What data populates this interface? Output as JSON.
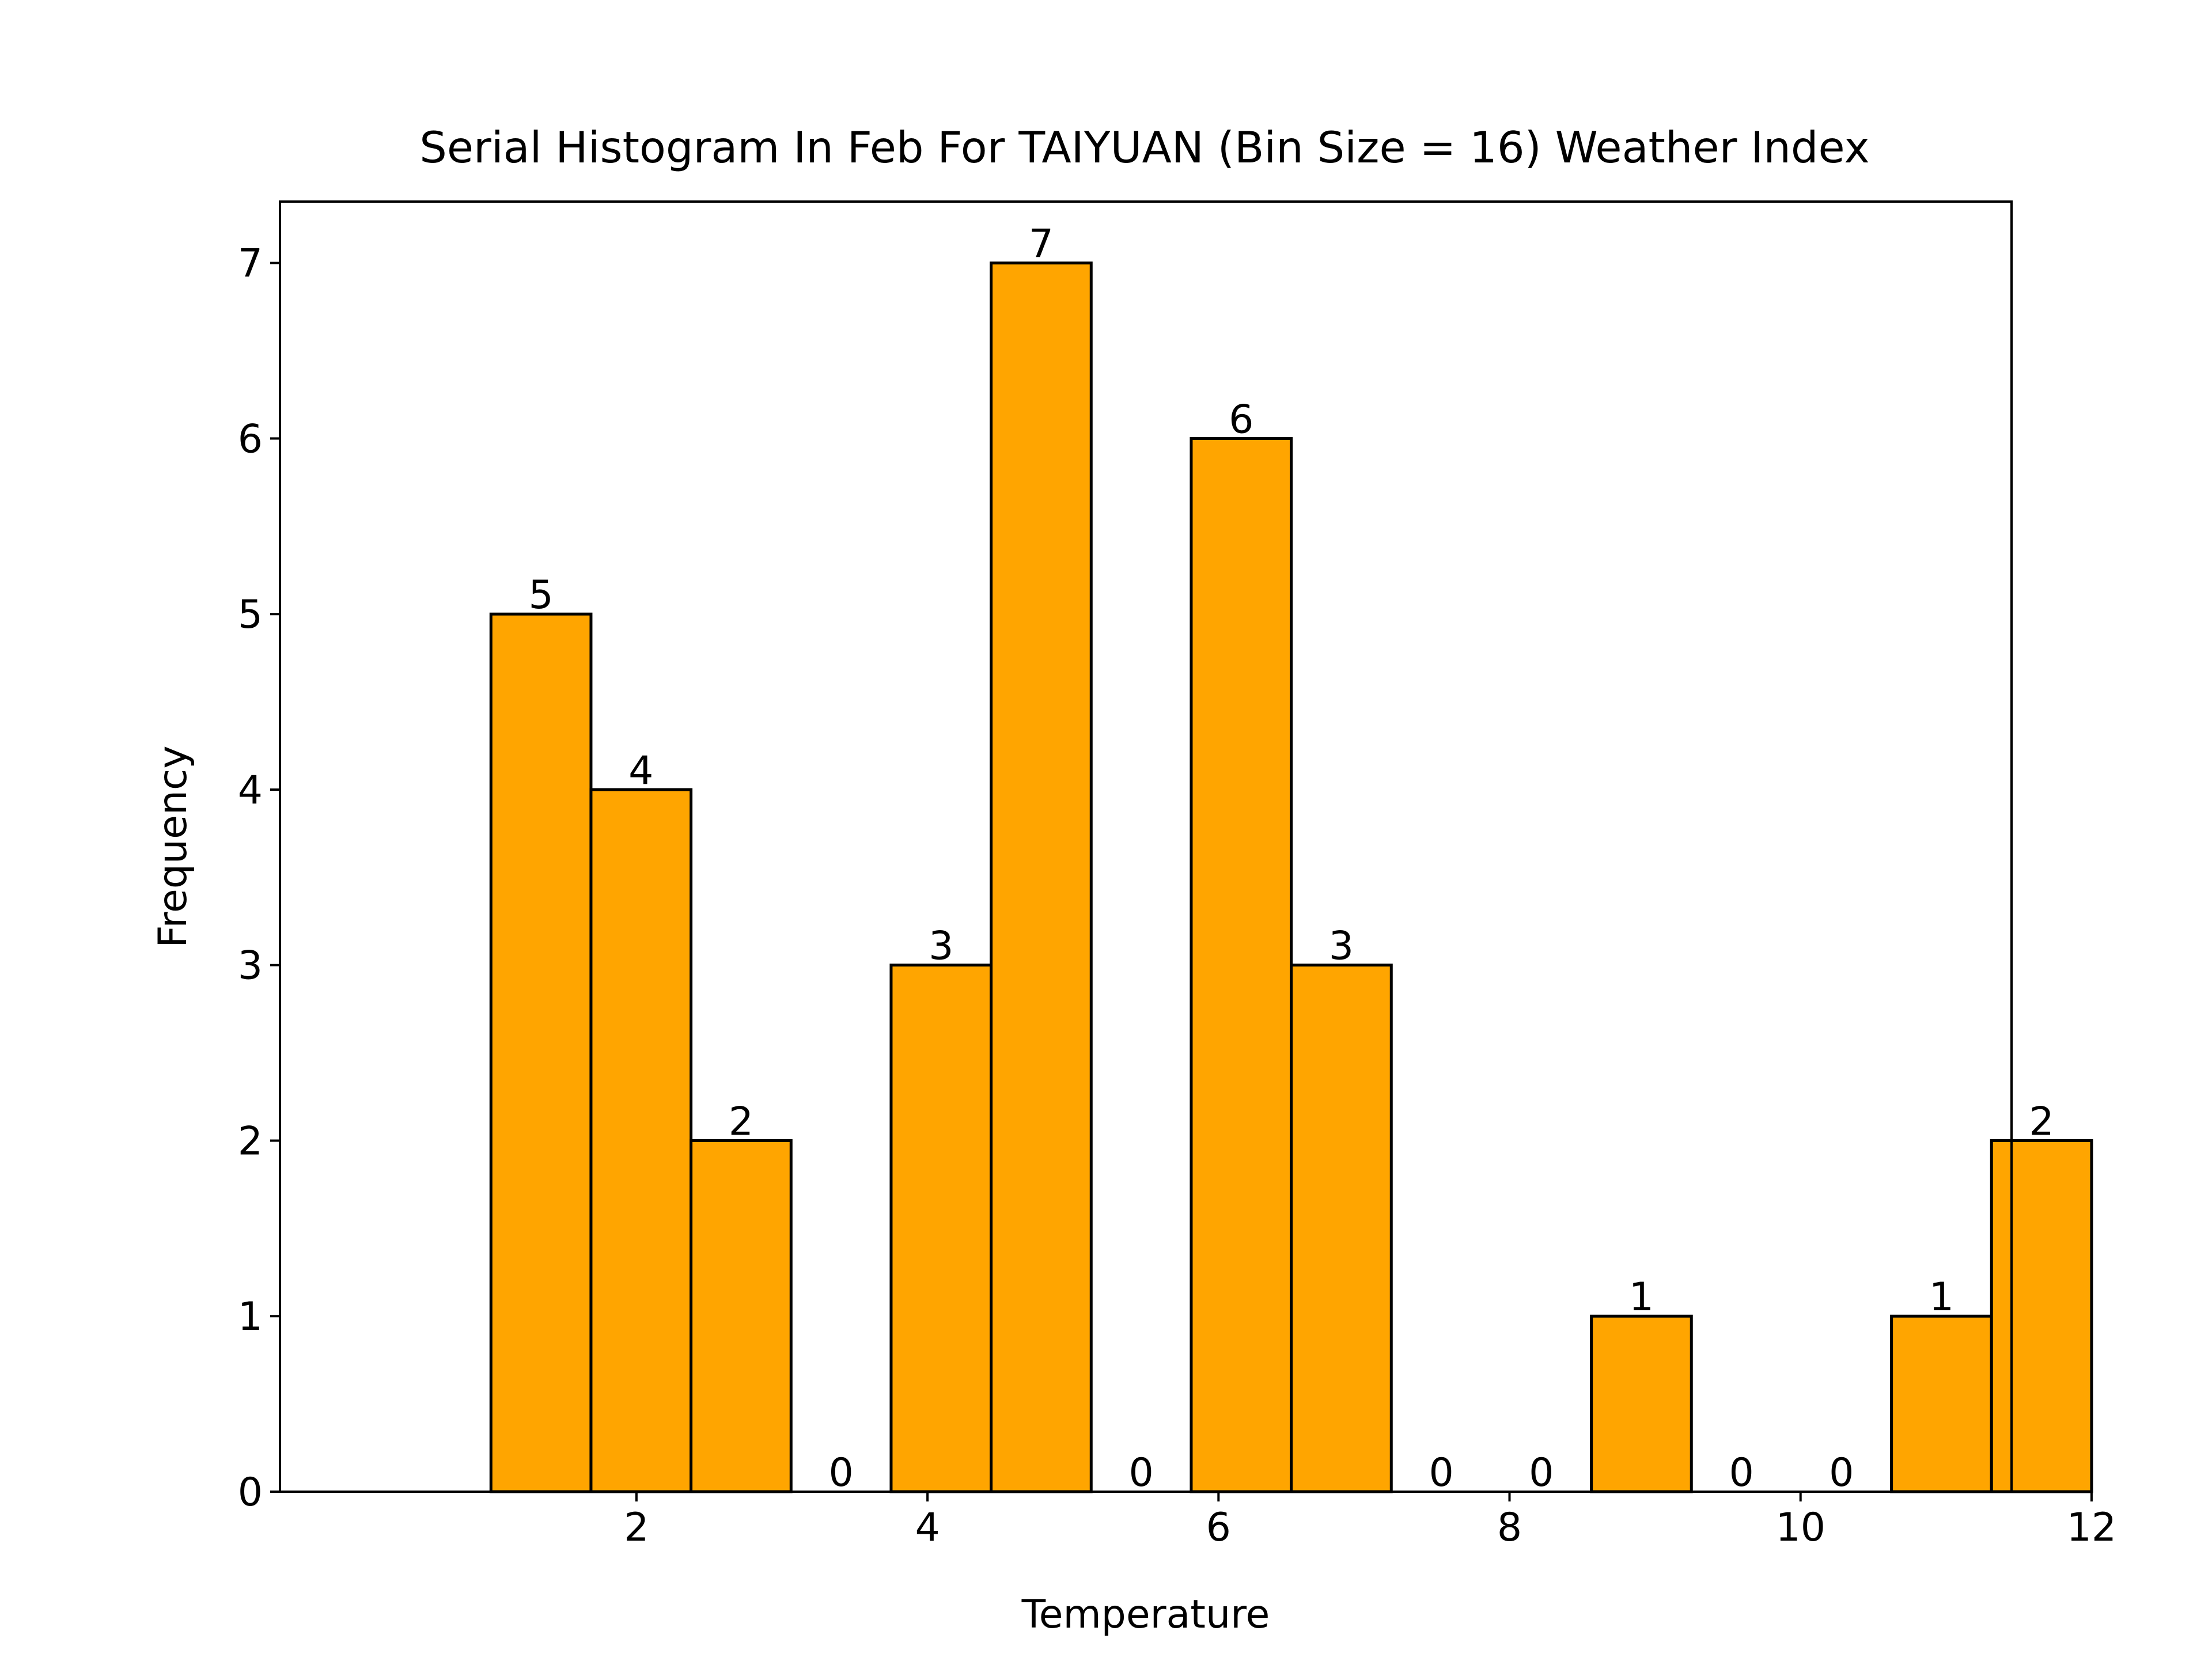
{
  "chart_data": {
    "type": "bar",
    "title": "Serial Histogram In Feb For TAIYUAN (Bin Size = 16) Weather Index",
    "xlabel": "Temperature",
    "ylabel": "Frequency",
    "bin_edges": [
      1.0,
      1.6875,
      2.375,
      3.0625,
      3.75,
      4.4375,
      5.125,
      5.8125,
      6.5,
      7.1875,
      7.875,
      8.5625,
      9.25,
      9.9375,
      10.625,
      11.3125,
      12.0
    ],
    "values": [
      5,
      4,
      2,
      0,
      3,
      7,
      0,
      6,
      3,
      0,
      0,
      1,
      0,
      0,
      1,
      2
    ],
    "xticks": [
      2,
      4,
      6,
      8,
      10,
      12
    ],
    "yticks": [
      0,
      1,
      2,
      3,
      4,
      5,
      6,
      7
    ],
    "xlim": [
      -0.45,
      11.45
    ],
    "ylim": [
      0,
      7.35
    ],
    "grid": false,
    "bar_color": "#FFA500",
    "edge_color": "#000000"
  }
}
